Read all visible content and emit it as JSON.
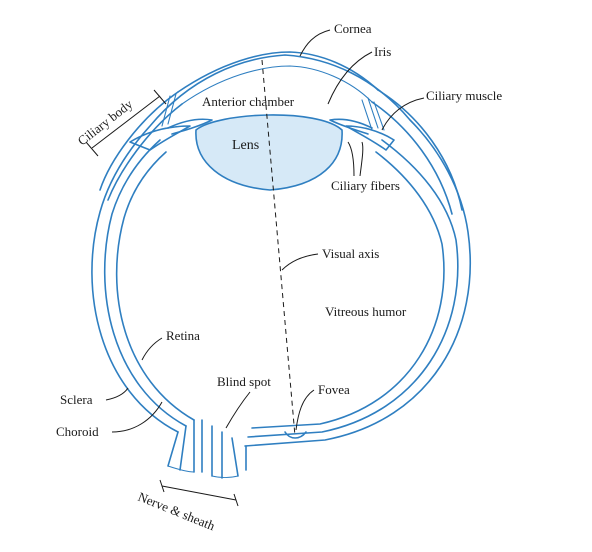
{
  "labels": {
    "cornea": "Cornea",
    "iris": "Iris",
    "ciliary_muscle": "Ciliary muscle",
    "ciliary_body": "Ciliary body",
    "anterior_chamber": "Anterior chamber",
    "lens": "Lens",
    "ciliary_fibers": "Ciliary fibers",
    "visual_axis": "Visual axis",
    "vitreous_humor": "Vitreous humor",
    "retina": "Retina",
    "blind_spot": "Blind spot",
    "fovea": "Fovea",
    "sclera": "Sclera",
    "choroid": "Choroid",
    "nerve_sheath": "Nerve & sheath"
  },
  "colors": {
    "outline": "#2f7fc1",
    "lens_fill": "#d6e9f7",
    "label_text": "#1a1a1a"
  }
}
